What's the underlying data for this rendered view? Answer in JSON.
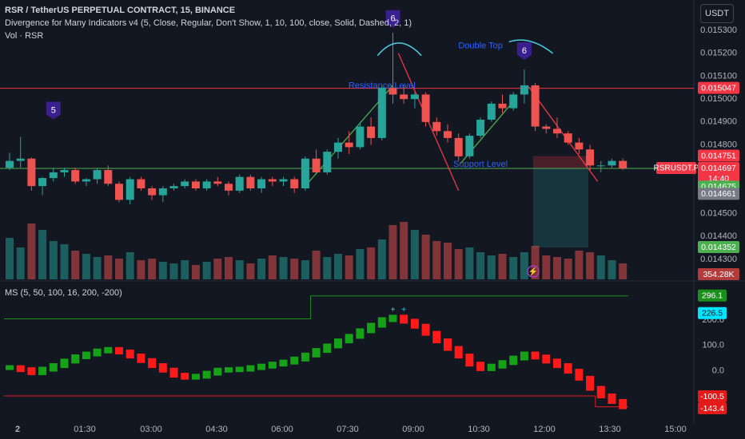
{
  "header": {
    "title": "RSR / TetherUS PERPETUAL CONTRACT, 15, BINANCE",
    "indicator_1": "Divergence for Many Indicators v4 (5, Close, Regular, Don't Show, 1, 10, 100, close, Solid, Dashed, 2, 1)",
    "indicator_2": "Vol · RSR",
    "currency": "USDT"
  },
  "colors": {
    "background": "#131722",
    "bull": "#26a69a",
    "bear": "#ef5350",
    "resistance": "#f23645",
    "support": "#4caf50",
    "divergence_label": "#3a1f8f",
    "annotation": "#2962ff",
    "trendline": "#f23645",
    "ms_upper": "#1b8f1b",
    "ms_lower": "#e31a1a"
  },
  "chart_data": [
    {
      "type": "candlestick",
      "name": "price",
      "x_ticks": [
        "2",
        "01:30",
        "03:00",
        "04:30",
        "06:00",
        "07:30",
        "09:00",
        "10:30",
        "12:00",
        "13:30",
        "15:00"
      ],
      "y_ticks": [
        "0.015300",
        "0.015200",
        "0.015100",
        "0.015000",
        "0.014900",
        "0.014800",
        "0.014500",
        "0.014400",
        "0.014300"
      ],
      "ylim": [
        0.01423,
        0.01537
      ],
      "ohlc": [
        [
          0.0147,
          0.014765,
          0.01469,
          0.01473
        ],
        [
          0.01473,
          0.014835,
          0.0147,
          0.01474
        ],
        [
          0.01474,
          0.014745,
          0.0146,
          0.01462
        ],
        [
          0.01462,
          0.01466,
          0.01458,
          0.014655
        ],
        [
          0.014655,
          0.0147,
          0.01464,
          0.01468
        ],
        [
          0.01468,
          0.0147,
          0.01466,
          0.01469
        ],
        [
          0.01469,
          0.0147,
          0.01463,
          0.01464
        ],
        [
          0.01464,
          0.014655,
          0.01462,
          0.01465
        ],
        [
          0.01465,
          0.0147,
          0.01463,
          0.01469
        ],
        [
          0.01469,
          0.01471,
          0.01462,
          0.01463
        ],
        [
          0.01463,
          0.01464,
          0.01455,
          0.01456
        ],
        [
          0.01456,
          0.01466,
          0.01454,
          0.01465
        ],
        [
          0.01465,
          0.01466,
          0.0146,
          0.01461
        ],
        [
          0.01461,
          0.01462,
          0.01456,
          0.01458
        ],
        [
          0.01458,
          0.01462,
          0.01455,
          0.01461
        ],
        [
          0.01461,
          0.01463,
          0.0146,
          0.01462
        ],
        [
          0.01462,
          0.01465,
          0.01461,
          0.01464
        ],
        [
          0.01464,
          0.01465,
          0.0146,
          0.01461
        ],
        [
          0.01461,
          0.01465,
          0.0146,
          0.01464
        ],
        [
          0.01464,
          0.01466,
          0.01462,
          0.01463
        ],
        [
          0.01463,
          0.01464,
          0.01458,
          0.0146
        ],
        [
          0.0146,
          0.01467,
          0.01459,
          0.01466
        ],
        [
          0.01466,
          0.01467,
          0.0146,
          0.01461
        ],
        [
          0.01461,
          0.01466,
          0.01459,
          0.01465
        ],
        [
          0.01465,
          0.01466,
          0.01462,
          0.01464
        ],
        [
          0.01464,
          0.01466,
          0.01462,
          0.01465
        ],
        [
          0.01465,
          0.01466,
          0.01459,
          0.01461
        ],
        [
          0.01461,
          0.01475,
          0.0146,
          0.01474
        ],
        [
          0.01474,
          0.01478,
          0.01467,
          0.01468
        ],
        [
          0.01468,
          0.01478,
          0.01467,
          0.01477
        ],
        [
          0.01477,
          0.01483,
          0.01474,
          0.01481
        ],
        [
          0.01481,
          0.01486,
          0.01476,
          0.01479
        ],
        [
          0.01479,
          0.0149,
          0.01478,
          0.01488
        ],
        [
          0.01488,
          0.01492,
          0.0148,
          0.01483
        ],
        [
          0.01483,
          0.01506,
          0.01482,
          0.01505
        ],
        [
          0.01505,
          0.01529,
          0.01498,
          0.01502
        ],
        [
          0.01502,
          0.01506,
          0.01498,
          0.015
        ],
        [
          0.015,
          0.01503,
          0.01496,
          0.01502
        ],
        [
          0.01502,
          0.01503,
          0.01488,
          0.0149
        ],
        [
          0.0149,
          0.01492,
          0.01484,
          0.01486
        ],
        [
          0.01486,
          0.01489,
          0.01481,
          0.01483
        ],
        [
          0.01483,
          0.01485,
          0.01473,
          0.01475
        ],
        [
          0.01475,
          0.01485,
          0.01474,
          0.01484
        ],
        [
          0.01484,
          0.01492,
          0.01483,
          0.01491
        ],
        [
          0.01491,
          0.01499,
          0.0149,
          0.01498
        ],
        [
          0.01498,
          0.01502,
          0.01494,
          0.01496
        ],
        [
          0.01496,
          0.01503,
          0.01495,
          0.01502
        ],
        [
          0.01502,
          0.01513,
          0.01498,
          0.01506
        ],
        [
          0.01506,
          0.01507,
          0.01486,
          0.01488
        ],
        [
          0.01488,
          0.01489,
          0.01485,
          0.01487
        ],
        [
          0.01487,
          0.01492,
          0.01483,
          0.01485
        ],
        [
          0.01485,
          0.01486,
          0.0148,
          0.01481
        ],
        [
          0.01481,
          0.01483,
          0.01476,
          0.01478
        ],
        [
          0.01478,
          0.0148,
          0.01469,
          0.01471
        ],
        [
          0.01471,
          0.01473,
          0.01468,
          0.01471
        ],
        [
          0.01471,
          0.01474,
          0.0147,
          0.01473
        ],
        [
          0.01473,
          0.01474,
          0.01469,
          0.014697
        ]
      ],
      "resistance_level": 0.015047,
      "support_level": 0.014697,
      "annotations": [
        {
          "text": "Resistance Level",
          "candle": 34,
          "y": 0.015058
        },
        {
          "text": "Support Level",
          "candle": 43,
          "y": 0.014714
        },
        {
          "text": "Double Top",
          "candle": 43,
          "y": 0.015232
        }
      ],
      "divergence_markers": [
        {
          "label": "5",
          "candle": 4,
          "y": 0.01495
        },
        {
          "label": "6",
          "candle": 35,
          "y": 0.01535
        },
        {
          "label": "6",
          "candle": 47,
          "y": 0.01521
        }
      ],
      "position": {
        "entry": 0.014697,
        "stop": 0.014751,
        "target": 0.014352
      },
      "price_labels": [
        {
          "text": "0.015047",
          "value": 0.015047,
          "color": "#f23645"
        },
        {
          "text": "0.014751",
          "value": 0.014751,
          "color": "#f23645"
        },
        {
          "text": "RSRUSDT.P",
          "value": 0.014697,
          "color": "#f23645"
        },
        {
          "text": "0.014697",
          "value": 0.014697,
          "color": "#f23645"
        },
        {
          "text": "14:40",
          "value": 0.014697,
          "color": "#f23645"
        },
        {
          "text": "0.014675",
          "value": 0.014675,
          "color": "#4caf50"
        },
        {
          "text": "0.014661",
          "value": 0.014661,
          "color": "#787b86"
        },
        {
          "text": "0.014352",
          "value": 0.014352,
          "color": "#4caf50"
        }
      ]
    },
    {
      "type": "bar",
      "name": "volume",
      "label": "354.28K",
      "values": [
        52,
        40,
        70,
        62,
        48,
        44,
        36,
        32,
        28,
        30,
        26,
        34,
        24,
        26,
        22,
        20,
        24,
        18,
        22,
        26,
        28,
        24,
        20,
        26,
        30,
        28,
        26,
        24,
        36,
        28,
        32,
        30,
        38,
        40,
        50,
        68,
        72,
        62,
        56,
        48,
        46,
        38,
        40,
        34,
        30,
        32,
        28,
        34,
        42,
        30,
        28,
        26,
        36,
        34,
        30,
        24,
        20
      ]
    },
    {
      "type": "line",
      "name": "MS (5, 50, 100, 16, 200, -200)",
      "y_ticks": [
        "200.0",
        "100.0",
        "0.0"
      ],
      "ylim": [
        -160,
        330
      ],
      "values": [
        12,
        4,
        -8,
        6,
        20,
        38,
        55,
        66,
        78,
        84,
        74,
        58,
        40,
        20,
        2,
        -18,
        -26,
        -22,
        -10,
        2,
        4,
        6,
        12,
        18,
        26,
        34,
        46,
        62,
        80,
        98,
        118,
        136,
        158,
        180,
        202,
        212,
        196,
        176,
        148,
        118,
        88,
        58,
        26,
        8,
        18,
        32,
        50,
        66,
        54,
        38,
        20,
        -2,
        -30,
        -70,
        -100,
        -122,
        -143
      ],
      "upper_band": [
        205,
        205,
        205,
        205,
        205,
        205,
        205,
        205,
        205,
        205,
        205,
        205,
        205,
        205,
        205,
        205,
        205,
        205,
        205,
        205,
        205,
        205,
        205,
        205,
        205,
        205,
        205,
        205,
        296,
        296,
        296,
        296,
        296,
        296,
        296,
        296,
        296,
        296,
        296,
        296,
        296,
        296,
        296,
        296,
        296,
        296,
        296,
        296,
        296,
        296,
        296,
        296,
        296,
        296,
        296,
        296,
        296
      ],
      "lower_band": [
        -100,
        -100,
        -100,
        -100,
        -100,
        -100,
        -100,
        -100,
        -100,
        -100,
        -100,
        -100,
        -100,
        -100,
        -100,
        -100,
        -100,
        -100,
        -100,
        -100,
        -100,
        -100,
        -100,
        -100,
        -100,
        -100,
        -100,
        -100,
        -100,
        -100,
        -100,
        -100,
        -100,
        -100,
        -100,
        -100,
        -100,
        -100,
        -100,
        -100,
        -100,
        -100,
        -100,
        -100,
        -100,
        -100,
        -100,
        -100,
        -100,
        -100,
        -100,
        -100,
        -100,
        -100,
        -143,
        -143,
        -143
      ],
      "value_labels": [
        {
          "text": "296.1",
          "value": 296.1,
          "color": "#1b8f1b"
        },
        {
          "text": "226.5",
          "value": 226.5,
          "color": "#00e5ff"
        },
        {
          "text": "-100.5",
          "value": -100.5,
          "color": "#e31a1a"
        },
        {
          "text": "-143.4",
          "value": -143.4,
          "color": "#e31a1a"
        }
      ],
      "markers": [
        {
          "text": "+",
          "candle": 35,
          "y": 240
        },
        {
          "text": "+",
          "candle": 36,
          "y": 240
        }
      ]
    }
  ]
}
